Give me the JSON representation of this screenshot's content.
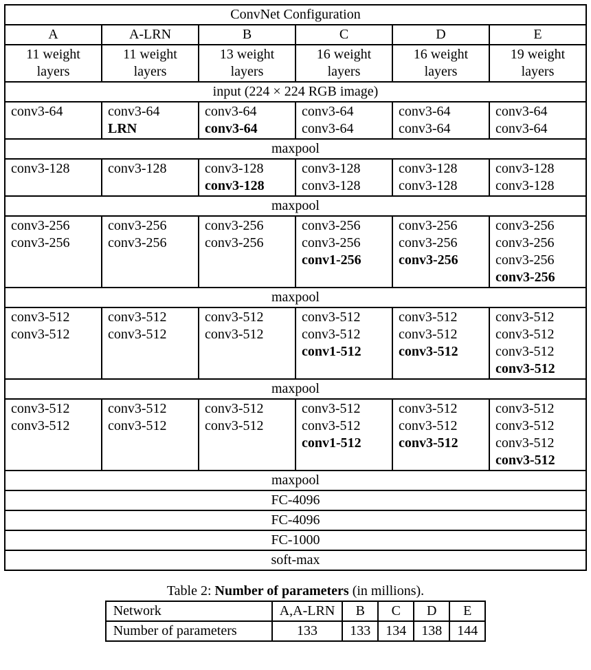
{
  "colors": {
    "text": "#000000",
    "background": "#ffffff",
    "border": "#000000"
  },
  "typography": {
    "font_family": "Times New Roman",
    "base_size_pt": 15
  },
  "table1": {
    "type": "table",
    "title": "ConvNet Configuration",
    "columns": [
      "A",
      "A-LRN",
      "B",
      "C",
      "D",
      "E"
    ],
    "subheaders": [
      "11 weight layers",
      "11 weight layers",
      "13 weight layers",
      "16 weight layers",
      "16 weight layers",
      "19 weight layers"
    ],
    "input_row": "input (224 × 224 RGB image)",
    "blocks": [
      {
        "cells": [
          [
            {
              "t": "conv3-64",
              "b": false
            }
          ],
          [
            {
              "t": "conv3-64",
              "b": false
            },
            {
              "t": "LRN",
              "b": true
            }
          ],
          [
            {
              "t": "conv3-64",
              "b": false
            },
            {
              "t": "conv3-64",
              "b": true
            }
          ],
          [
            {
              "t": "conv3-64",
              "b": false
            },
            {
              "t": "conv3-64",
              "b": false
            }
          ],
          [
            {
              "t": "conv3-64",
              "b": false
            },
            {
              "t": "conv3-64",
              "b": false
            }
          ],
          [
            {
              "t": "conv3-64",
              "b": false
            },
            {
              "t": "conv3-64",
              "b": false
            }
          ]
        ]
      },
      {
        "cells": [
          [
            {
              "t": "conv3-128",
              "b": false
            }
          ],
          [
            {
              "t": "conv3-128",
              "b": false
            }
          ],
          [
            {
              "t": "conv3-128",
              "b": false
            },
            {
              "t": "conv3-128",
              "b": true
            }
          ],
          [
            {
              "t": "conv3-128",
              "b": false
            },
            {
              "t": "conv3-128",
              "b": false
            }
          ],
          [
            {
              "t": "conv3-128",
              "b": false
            },
            {
              "t": "conv3-128",
              "b": false
            }
          ],
          [
            {
              "t": "conv3-128",
              "b": false
            },
            {
              "t": "conv3-128",
              "b": false
            }
          ]
        ]
      },
      {
        "cells": [
          [
            {
              "t": "conv3-256",
              "b": false
            },
            {
              "t": "conv3-256",
              "b": false
            }
          ],
          [
            {
              "t": "conv3-256",
              "b": false
            },
            {
              "t": "conv3-256",
              "b": false
            }
          ],
          [
            {
              "t": "conv3-256",
              "b": false
            },
            {
              "t": "conv3-256",
              "b": false
            }
          ],
          [
            {
              "t": "conv3-256",
              "b": false
            },
            {
              "t": "conv3-256",
              "b": false
            },
            {
              "t": "conv1-256",
              "b": true
            }
          ],
          [
            {
              "t": "conv3-256",
              "b": false
            },
            {
              "t": "conv3-256",
              "b": false
            },
            {
              "t": "conv3-256",
              "b": true
            }
          ],
          [
            {
              "t": "conv3-256",
              "b": false
            },
            {
              "t": "conv3-256",
              "b": false
            },
            {
              "t": "conv3-256",
              "b": false
            },
            {
              "t": "conv3-256",
              "b": true
            }
          ]
        ]
      },
      {
        "cells": [
          [
            {
              "t": "conv3-512",
              "b": false
            },
            {
              "t": "conv3-512",
              "b": false
            }
          ],
          [
            {
              "t": "conv3-512",
              "b": false
            },
            {
              "t": "conv3-512",
              "b": false
            }
          ],
          [
            {
              "t": "conv3-512",
              "b": false
            },
            {
              "t": "conv3-512",
              "b": false
            }
          ],
          [
            {
              "t": "conv3-512",
              "b": false
            },
            {
              "t": "conv3-512",
              "b": false
            },
            {
              "t": "conv1-512",
              "b": true
            }
          ],
          [
            {
              "t": "conv3-512",
              "b": false
            },
            {
              "t": "conv3-512",
              "b": false
            },
            {
              "t": "conv3-512",
              "b": true
            }
          ],
          [
            {
              "t": "conv3-512",
              "b": false
            },
            {
              "t": "conv3-512",
              "b": false
            },
            {
              "t": "conv3-512",
              "b": false
            },
            {
              "t": "conv3-512",
              "b": true
            }
          ]
        ]
      },
      {
        "cells": [
          [
            {
              "t": "conv3-512",
              "b": false
            },
            {
              "t": "conv3-512",
              "b": false
            }
          ],
          [
            {
              "t": "conv3-512",
              "b": false
            },
            {
              "t": "conv3-512",
              "b": false
            }
          ],
          [
            {
              "t": "conv3-512",
              "b": false
            },
            {
              "t": "conv3-512",
              "b": false
            }
          ],
          [
            {
              "t": "conv3-512",
              "b": false
            },
            {
              "t": "conv3-512",
              "b": false
            },
            {
              "t": "conv1-512",
              "b": true
            }
          ],
          [
            {
              "t": "conv3-512",
              "b": false
            },
            {
              "t": "conv3-512",
              "b": false
            },
            {
              "t": "conv3-512",
              "b": true
            }
          ],
          [
            {
              "t": "conv3-512",
              "b": false
            },
            {
              "t": "conv3-512",
              "b": false
            },
            {
              "t": "conv3-512",
              "b": false
            },
            {
              "t": "conv3-512",
              "b": true
            }
          ]
        ]
      }
    ],
    "separators": [
      "maxpool",
      "maxpool",
      "maxpool",
      "maxpool",
      "maxpool"
    ],
    "tail_rows": [
      "FC-4096",
      "FC-4096",
      "FC-1000",
      "soft-max"
    ]
  },
  "table2": {
    "type": "table",
    "caption_prefix": "Table 2: ",
    "caption_bold": "Number of parameters",
    "caption_suffix": " (in millions).",
    "columns": [
      "Network",
      "A,A-LRN",
      "B",
      "C",
      "D",
      "E"
    ],
    "row_label": "Number of parameters",
    "values": [
      "133",
      "133",
      "134",
      "138",
      "144"
    ]
  }
}
